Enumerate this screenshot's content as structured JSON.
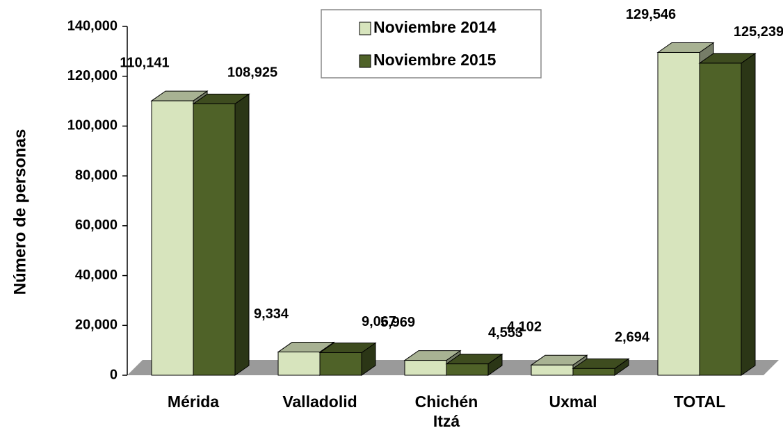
{
  "chart_data": {
    "type": "bar3d",
    "y_label": "Número de personas",
    "categories": [
      "Mérida",
      "Valladolid",
      "Chichén Itzá",
      "Uxmal",
      "TOTAL"
    ],
    "series": [
      {
        "name": "Noviembre 2014",
        "color": "#d7e4bd",
        "values": [
          110141,
          9334,
          5969,
          4102,
          129546
        ],
        "value_labels": [
          "110,141",
          "9,334",
          "5,969",
          "4,102",
          "129,546"
        ]
      },
      {
        "name": "Noviembre 2015",
        "color": "#4f6228",
        "values": [
          108925,
          9067,
          4553,
          2694,
          125239
        ],
        "value_labels": [
          "108,925",
          "9,067",
          "4,553",
          "2,694",
          "125,239"
        ]
      }
    ],
    "ylim": [
      0,
      140000
    ],
    "yticks": [
      0,
      {
        "value": 20000,
        "label": "20,000"
      },
      {
        "value": 40000,
        "label": "40,000"
      },
      {
        "value": 60000,
        "label": "60,000"
      },
      {
        "value": 80000,
        "label": "80,000"
      },
      {
        "value": 100000,
        "label": "100,000"
      },
      {
        "value": 120000,
        "label": "120,000"
      },
      {
        "value": 140000,
        "label": "140,000"
      }
    ],
    "legend": "top"
  }
}
